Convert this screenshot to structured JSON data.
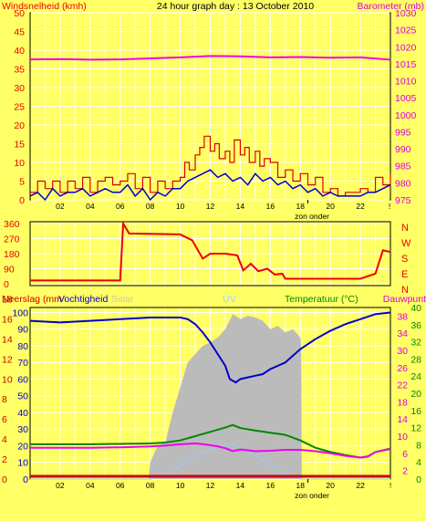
{
  "title": "24 hour graph day : 13 October 2010",
  "colors": {
    "background": "#FFFF66",
    "plot_background": "#FFFF66",
    "wind_avg": "#0000CC",
    "wind_gust": "#DD0000",
    "barometer": "#EE00EE",
    "direction": "#EE0000",
    "humidity": "#0000CC",
    "solar": "#BBBBBB",
    "uv": "#99CCFF",
    "temperature": "#008800",
    "dewpoint": "#EE00EE",
    "rain": "#CC0000",
    "grid": "#FFFFFF",
    "axis_text": "#000000",
    "wind_text": "#EE0000",
    "baro_text": "#DD00DD",
    "temp_text": "#008800"
  },
  "chart_data": [
    {
      "type": "line",
      "panel": "wind-barometer",
      "left_axis_label": "Windsnelheid (kmh)",
      "right_axis_label": "Barometer (mb)",
      "x_ticks": [
        "02",
        "04",
        "06",
        "08",
        "10",
        "12",
        "14",
        "16",
        "18",
        "20",
        "22",
        "!"
      ],
      "sun_marker": "zon onder",
      "sun_marker_hour": 18.5,
      "ylim_left": [
        0,
        50
      ],
      "yticks_left": [
        0,
        5,
        10,
        15,
        20,
        25,
        30,
        35,
        40,
        45,
        50
      ],
      "ylim_right": [
        975,
        1030
      ],
      "yticks_right": [
        975,
        980,
        985,
        990,
        995,
        1000,
        1005,
        1010,
        1015,
        1020,
        1025,
        1030
      ],
      "series": [
        {
          "key": "gust",
          "axis": "left",
          "hours": [
            0,
            0.5,
            1,
            1.5,
            2,
            2.5,
            3,
            3.5,
            4,
            4.5,
            5,
            5.5,
            6,
            6.5,
            7,
            7.5,
            8,
            8.5,
            9,
            9.5,
            10,
            10.3,
            10.6,
            11,
            11.3,
            11.6,
            12,
            12.3,
            12.6,
            13,
            13.3,
            13.6,
            14,
            14.3,
            14.6,
            15,
            15.3,
            15.6,
            16,
            16.5,
            17,
            17.5,
            18,
            18.5,
            19,
            19.5,
            20,
            20.5,
            21,
            21.5,
            22,
            22.5,
            23,
            23.5,
            24
          ],
          "values": [
            2,
            5,
            3,
            5,
            2,
            5,
            3,
            6,
            2,
            5,
            6,
            4,
            5,
            7,
            3,
            6,
            2,
            5,
            3,
            5,
            6,
            10,
            8,
            12,
            14,
            17,
            13,
            15,
            11,
            13,
            10,
            16,
            12,
            14,
            10,
            13,
            9,
            11,
            10,
            6,
            8,
            5,
            7,
            4,
            6,
            2,
            3,
            1,
            2,
            2,
            3,
            2,
            6,
            4,
            7
          ]
        },
        {
          "key": "avg",
          "axis": "left",
          "hours": [
            0,
            0.5,
            1,
            1.5,
            2,
            2.5,
            3,
            3.5,
            4,
            4.5,
            5,
            5.5,
            6,
            6.5,
            7,
            7.5,
            8,
            8.5,
            9,
            9.5,
            10,
            10.5,
            11,
            11.5,
            12,
            12.5,
            13,
            13.5,
            14,
            14.5,
            15,
            15.5,
            16,
            16.5,
            17,
            17.5,
            18,
            18.5,
            19,
            19.5,
            20,
            20.5,
            21,
            21.5,
            22,
            22.5,
            23,
            23.5,
            24
          ],
          "values": [
            1,
            2,
            0,
            3,
            1,
            2,
            2,
            3,
            1,
            2,
            3,
            2,
            2,
            4,
            1,
            3,
            0,
            2,
            1,
            3,
            3,
            5,
            6,
            7,
            8,
            6,
            7,
            5,
            6,
            4,
            7,
            5,
            6,
            4,
            5,
            3,
            4,
            2,
            3,
            1,
            2,
            1,
            1,
            1,
            1,
            2,
            2,
            3,
            4
          ]
        },
        {
          "key": "barometer",
          "axis": "right",
          "hours": [
            0,
            2,
            4,
            6,
            8,
            10,
            12,
            14,
            16,
            18,
            20,
            22,
            24
          ],
          "values": [
            1016.3,
            1016.4,
            1016.2,
            1016.3,
            1016.6,
            1016.9,
            1017.3,
            1017.2,
            1016.9,
            1017.0,
            1016.8,
            1016.9,
            1016.2
          ]
        }
      ]
    },
    {
      "type": "line",
      "panel": "wind-direction",
      "ylim": [
        0,
        360
      ],
      "yticks": [
        0,
        90,
        180,
        270,
        360
      ],
      "compass_labels": [
        "N",
        "W",
        "S",
        "E",
        "N"
      ],
      "series": [
        {
          "key": "direction",
          "hours": [
            0,
            6,
            6.2,
            6.6,
            7,
            10,
            10.8,
            11.5,
            12,
            13,
            13.8,
            14.2,
            14.7,
            15.2,
            15.8,
            16.3,
            16.8,
            17,
            18,
            19,
            20,
            21,
            22,
            23,
            23.5,
            24
          ],
          "values": [
            20,
            20,
            360,
            300,
            300,
            295,
            260,
            150,
            180,
            180,
            170,
            80,
            120,
            75,
            90,
            55,
            60,
            30,
            30,
            30,
            30,
            30,
            30,
            60,
            200,
            190
          ]
        }
      ]
    },
    {
      "type": "line",
      "panel": "rain-humidity-temperature",
      "left_axis_labels": [
        "Neerslag (mm",
        "Vochtigheid",
        "Solar",
        "UV"
      ],
      "right_axis_labels": [
        "Temperatuur (°C)",
        "Dauwpunt"
      ],
      "x_ticks": [
        "02",
        "04",
        "06",
        "08",
        "10",
        "12",
        "14",
        "16",
        "18",
        "20",
        "22",
        "!"
      ],
      "sun_marker": "zon onder",
      "rain_ticks": [
        "0",
        "2",
        "4",
        "6",
        "8",
        "10",
        "12",
        "14",
        "16",
        "18"
      ],
      "humidity_ticks": [
        "0",
        "10",
        "20",
        "30",
        "40",
        "50",
        "60",
        "70",
        "80",
        "90",
        "100"
      ],
      "temp_ticks": [
        "0",
        "2",
        "4",
        "6",
        "8",
        "10",
        "12",
        "14",
        "16",
        "18",
        "20",
        "22",
        "24",
        "26",
        "28",
        "30",
        "32",
        "34",
        "36",
        "38",
        "40"
      ],
      "ylim_humidity": [
        0,
        103
      ],
      "ylim_temp": [
        0,
        40
      ],
      "series": [
        {
          "key": "humidity",
          "hours": [
            0,
            2,
            4,
            6,
            8,
            10,
            10.5,
            11,
            11.5,
            12,
            12.5,
            13,
            13.3,
            13.7,
            14,
            14.5,
            15,
            15.5,
            16,
            16.5,
            17,
            17.5,
            18,
            19,
            20,
            21,
            22,
            23,
            24
          ],
          "values": [
            95,
            94,
            95,
            96,
            97,
            97,
            96,
            93,
            88,
            82,
            75,
            68,
            60,
            58,
            60,
            61,
            62,
            63,
            66,
            68,
            70,
            74,
            78,
            84,
            89,
            93,
            96,
            99,
            100
          ]
        },
        {
          "key": "solar",
          "hours": [
            0,
            7.9,
            8,
            8.5,
            9,
            9.5,
            10,
            10.5,
            11,
            11.5,
            12,
            12.5,
            13,
            13.5,
            14,
            14.5,
            15,
            15.5,
            16,
            16.5,
            17,
            17.5,
            18,
            18.05,
            18.1,
            24
          ],
          "values": [
            0,
            0,
            10,
            20,
            22,
            40,
            55,
            70,
            75,
            80,
            82,
            85,
            90,
            99,
            96,
            98,
            97,
            95,
            90,
            92,
            88,
            90,
            85,
            80,
            0,
            0
          ]
        },
        {
          "key": "uv",
          "hours": [
            0,
            8,
            9,
            10,
            11,
            12,
            13,
            13.5,
            14,
            15,
            16,
            17,
            18,
            24
          ],
          "values": [
            0,
            0,
            2,
            8,
            14,
            18,
            20,
            21,
            19,
            14,
            8,
            3,
            0,
            0
          ]
        },
        {
          "key": "temperature",
          "hours": [
            0,
            2,
            4,
            6,
            8,
            9,
            10,
            11,
            12,
            12.5,
            13,
            13.5,
            14,
            15,
            16,
            17,
            18,
            19,
            20,
            21,
            22,
            22.5,
            23,
            24
          ],
          "values": [
            8.1,
            8.1,
            8.1,
            8.2,
            8.3,
            8.5,
            9.0,
            10.0,
            11.0,
            11.5,
            12.0,
            12.6,
            11.9,
            11.3,
            10.8,
            10.3,
            9.0,
            7.3,
            6.3,
            5.6,
            5.0,
            5.3,
            6.3,
            7.1
          ]
        },
        {
          "key": "dewpoint",
          "hours": [
            0,
            2,
            4,
            6,
            8,
            9,
            10,
            11,
            11.5,
            12,
            12.5,
            13,
            13.5,
            14,
            15,
            16,
            17,
            18,
            19,
            20,
            21,
            22,
            22.5,
            23,
            24
          ],
          "values": [
            7.3,
            7.3,
            7.3,
            7.4,
            7.6,
            7.8,
            8.1,
            8.3,
            8.1,
            7.9,
            7.6,
            7.2,
            6.5,
            6.9,
            6.5,
            6.6,
            6.8,
            6.8,
            6.5,
            6.0,
            5.4,
            5.0,
            5.2,
            6.3,
            7.0
          ]
        },
        {
          "key": "rain",
          "hours": [
            0,
            24
          ],
          "values": [
            0,
            0
          ]
        }
      ]
    }
  ]
}
